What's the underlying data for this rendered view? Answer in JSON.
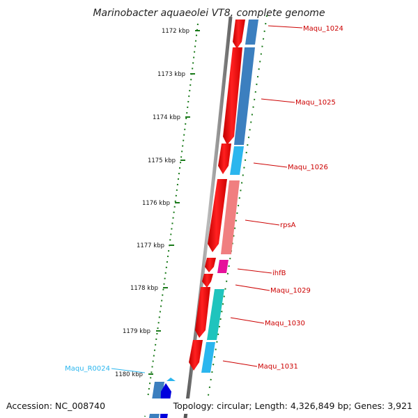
{
  "title": "Marinobacter aquaeolei VT8, complete genome",
  "footer": {
    "accession": "Accession: NC_008740",
    "topology": "Topology: circular; Length: 4,326,849 bp; Genes: 3,921"
  },
  "scale": {
    "unit": "kbp",
    "ticks": [
      {
        "label": "1172 kbp"
      },
      {
        "label": "1173 kbp"
      },
      {
        "label": "1174 kbp"
      },
      {
        "label": "1175 kbp"
      },
      {
        "label": "1176 kbp"
      },
      {
        "label": "1177 kbp"
      },
      {
        "label": "1178 kbp"
      },
      {
        "label": "1179 kbp"
      },
      {
        "label": "1180 kbp"
      }
    ]
  },
  "genes": [
    {
      "name": "Maqu_1024",
      "label_color": "#cc0000",
      "feature_color": "#3c7fbf"
    },
    {
      "name": "Maqu_1025",
      "label_color": "#cc0000",
      "feature_color": "#3c7fbf"
    },
    {
      "name": "Maqu_1026",
      "label_color": "#cc0000",
      "feature_color": "#2bb6ee"
    },
    {
      "name": "rpsA",
      "label_color": "#cc0000",
      "feature_color": "#f07f80"
    },
    {
      "name": "ihfB",
      "label_color": "#cc0000",
      "feature_color": "#e6119a"
    },
    {
      "name": "Maqu_1029",
      "label_color": "#cc0000",
      "feature_color": "#ffffff"
    },
    {
      "name": "Maqu_1030",
      "label_color": "#cc0000",
      "feature_color": "#1fc4bd"
    },
    {
      "name": "Maqu_1031",
      "label_color": "#cc0000",
      "feature_color": "#2bb6ee"
    },
    {
      "name": "Maqu_R0024",
      "label_color": "#2bb6ee",
      "feature_color": "#2bb6ee"
    }
  ],
  "colors": {
    "cds_strand": "#ee0000",
    "backbone": "#888888",
    "tick_marks": "#1a7a1a"
  }
}
